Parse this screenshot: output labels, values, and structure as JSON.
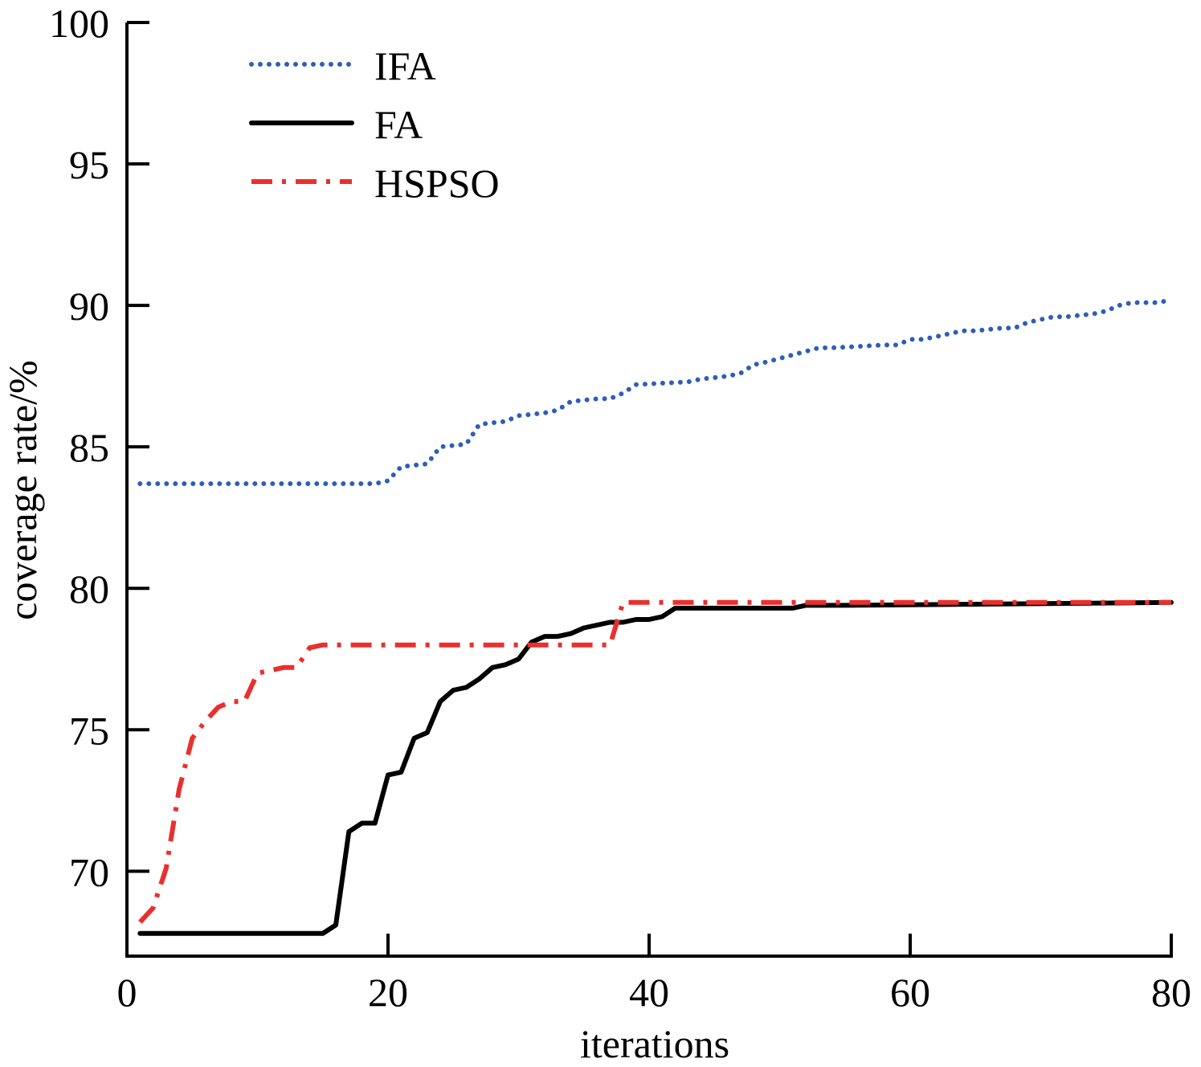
{
  "chart_data": {
    "type": "line",
    "title": "",
    "xlabel": "iterations",
    "ylabel": "coverage rate/%",
    "xlim": [
      0,
      80
    ],
    "ylim": [
      67.0,
      100
    ],
    "xticks": [
      "0",
      "20",
      "40",
      "60",
      "80"
    ],
    "yticks": [
      "70",
      "75",
      "80",
      "85",
      "90",
      "95",
      "100"
    ],
    "grid": false,
    "legend_position": "top-left",
    "series": [
      {
        "name": "IFA",
        "color": "#2f5db8",
        "style": "dotted",
        "x": [
          1,
          19,
          20,
          21,
          23,
          24,
          26,
          27,
          29,
          30,
          32,
          33,
          34,
          36,
          37,
          38,
          39,
          43,
          44,
          46,
          47,
          48,
          49,
          53,
          54,
          58,
          59,
          60,
          61,
          62,
          63,
          64,
          65,
          67,
          68,
          69,
          70,
          71,
          72,
          74,
          75,
          76,
          77,
          79,
          80
        ],
        "y": [
          83.7,
          83.7,
          83.8,
          84.3,
          84.4,
          85.0,
          85.1,
          85.8,
          85.9,
          86.1,
          86.2,
          86.3,
          86.6,
          86.7,
          86.7,
          86.9,
          87.2,
          87.3,
          87.4,
          87.5,
          87.6,
          87.9,
          88.0,
          88.5,
          88.5,
          88.6,
          88.6,
          88.8,
          88.8,
          88.9,
          89.0,
          89.1,
          89.1,
          89.2,
          89.2,
          89.4,
          89.5,
          89.6,
          89.6,
          89.7,
          89.8,
          90.0,
          90.1,
          90.1,
          90.2
        ]
      },
      {
        "name": "FA",
        "color": "#000000",
        "style": "solid",
        "x": [
          1,
          15,
          16,
          17,
          18,
          19,
          20,
          21,
          22,
          23,
          24,
          25,
          26,
          27,
          28,
          29,
          30,
          31,
          32,
          33,
          34,
          35,
          36,
          37,
          38,
          39,
          40,
          41,
          42,
          51,
          52,
          55,
          80
        ],
        "y": [
          67.8,
          67.8,
          68.1,
          71.4,
          71.7,
          71.7,
          73.4,
          73.5,
          74.7,
          74.9,
          76.0,
          76.4,
          76.5,
          76.8,
          77.2,
          77.3,
          77.5,
          78.1,
          78.3,
          78.3,
          78.4,
          78.6,
          78.7,
          78.8,
          78.8,
          78.9,
          78.9,
          79.0,
          79.3,
          79.3,
          79.4,
          79.4,
          79.5
        ]
      },
      {
        "name": "HSPSO",
        "color": "#e8302e",
        "style": "dashdot",
        "x": [
          1,
          2,
          3,
          4,
          5,
          6,
          7,
          8,
          9,
          10,
          11,
          12,
          13,
          14,
          15,
          20,
          30,
          35,
          37,
          38,
          40,
          80
        ],
        "y": [
          68.2,
          68.7,
          70.1,
          72.9,
          74.7,
          75.3,
          75.8,
          76.0,
          76.0,
          77.0,
          77.1,
          77.2,
          77.2,
          77.9,
          78.0,
          78.0,
          78.0,
          78.0,
          78.0,
          79.5,
          79.5,
          79.5
        ]
      }
    ]
  }
}
